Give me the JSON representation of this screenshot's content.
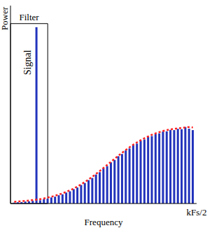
{
  "chart_data": {
    "type": "bar",
    "x_label": "Frequency",
    "y_label": "Power",
    "x": [
      1,
      2,
      3,
      4,
      5,
      6,
      7,
      8,
      9,
      10,
      11,
      12,
      13,
      14,
      15,
      16,
      17,
      18,
      19,
      20,
      21,
      22,
      23,
      24,
      25,
      26,
      27,
      28,
      29,
      30,
      31,
      32,
      33,
      34,
      35,
      36,
      37,
      38,
      39,
      40,
      41,
      42,
      43,
      44,
      45,
      46,
      47,
      48,
      49
    ],
    "series": [
      {
        "type": "bar",
        "color": "#2233bb",
        "values": [
          0.5,
          0.7,
          0.8,
          1.1,
          1.2,
          1.5,
          98,
          1.8,
          2.4,
          2.7,
          3.4,
          3.8,
          4.6,
          5.1,
          6.1,
          6.8,
          8,
          8.9,
          10.3,
          11.4,
          13,
          14.2,
          16.1,
          17.4,
          19.5,
          20.8,
          22.9,
          24.2,
          26.3,
          27.5,
          29.5,
          30.6,
          32.4,
          33.3,
          34.9,
          35.6,
          37,
          37.5,
          38.7,
          39,
          40,
          40.1,
          40.9,
          40.8,
          41.5,
          41.3,
          42.5,
          41.6,
          40.8
        ]
      },
      {
        "type": "line",
        "color": "#ff2020",
        "line_style": "dotted",
        "values": [
          1,
          1.1,
          1.3,
          1.5,
          1.7,
          1.9,
          2.1,
          2.4,
          2.8,
          3.3,
          3.8,
          4.4,
          5,
          5.7,
          6.5,
          7.4,
          8.4,
          9.5,
          10.7,
          12,
          13.4,
          14.9,
          16.5,
          18.1,
          19.8,
          21.5,
          23.2,
          24.9,
          26.6,
          28.2,
          29.8,
          31.3,
          32.7,
          34,
          35.2,
          36.3,
          37.3,
          38.2,
          39,
          39.7,
          40.3,
          40.8,
          41.2,
          41.5,
          41.8,
          42,
          42.3,
          42.5,
          42.3
        ]
      }
    ],
    "xlim": [
      0,
      50
    ],
    "xticks": [
      {
        "value": 50,
        "label": "kFs/2"
      }
    ],
    "ylim": [
      0,
      110
    ],
    "yticks": [],
    "tick_labels": "x",
    "grid": false,
    "filter": {
      "label": "Filter",
      "x": [
        0,
        10
      ],
      "y": [
        0,
        100
      ]
    },
    "annotations": [
      "Signal"
    ]
  }
}
